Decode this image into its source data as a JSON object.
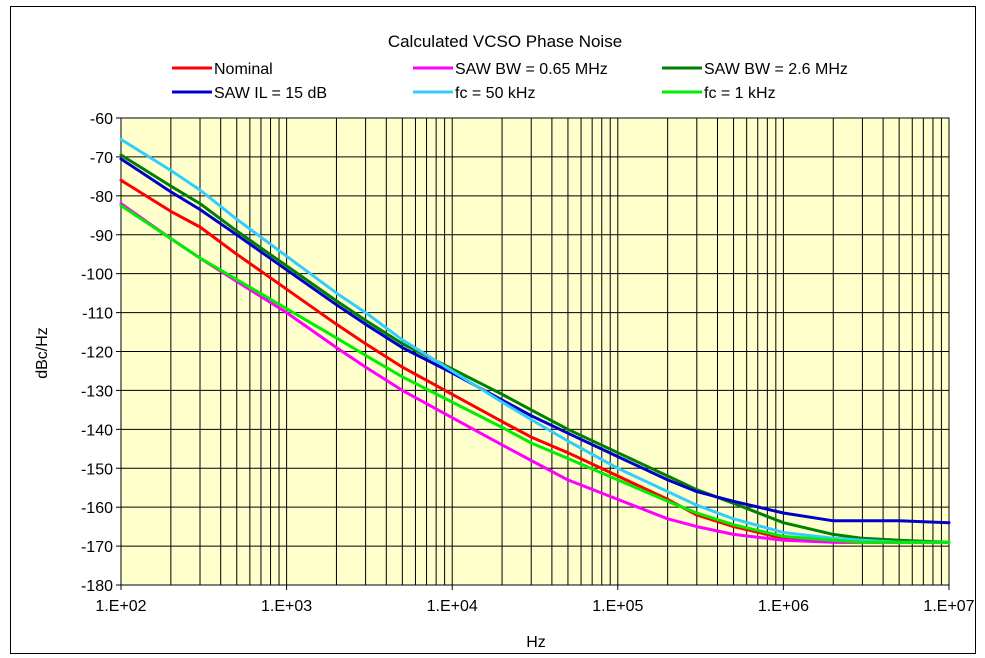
{
  "chart_data": {
    "type": "line",
    "title": "Calculated VCSO Phase Noise",
    "xlabel": "Hz",
    "ylabel": "dBc/Hz",
    "x_scale": "log",
    "xlim": [
      100,
      10000000
    ],
    "ylim": [
      -180,
      -60
    ],
    "x_ticks": [
      "1.E+02",
      "1.E+03",
      "1.E+04",
      "1.E+05",
      "1.E+06",
      "1.E+07"
    ],
    "y_ticks": [
      "-60",
      "-70",
      "-80",
      "-90",
      "-100",
      "-110",
      "-120",
      "-130",
      "-140",
      "-150",
      "-160",
      "-170",
      "-180"
    ],
    "grid": true,
    "plot_background": "#ffffcc",
    "legend_position": "top",
    "series": [
      {
        "name": "Nominal",
        "color": "#ff0000",
        "x": [
          100,
          200,
          300,
          500,
          1000,
          2000,
          3000,
          5000,
          10000,
          20000,
          30000,
          50000,
          100000,
          200000,
          300000,
          500000,
          1000000,
          2000000,
          3000000,
          5000000,
          10000000
        ],
        "y": [
          -76,
          -84,
          -88,
          -95,
          -104,
          -113,
          -118,
          -124,
          -131,
          -138,
          -142,
          -146,
          -152,
          -158,
          -162,
          -165,
          -168,
          -169,
          -169,
          -169,
          -169
        ]
      },
      {
        "name": "SAW BW = 0.65 MHz",
        "color": "#ff00ff",
        "x": [
          100,
          200,
          300,
          500,
          1000,
          2000,
          3000,
          5000,
          10000,
          20000,
          30000,
          50000,
          100000,
          200000,
          300000,
          500000,
          1000000,
          2000000,
          3000000,
          5000000,
          10000000
        ],
        "y": [
          -82,
          -91,
          -96,
          -102,
          -110,
          -119,
          -124,
          -130,
          -137,
          -144,
          -148,
          -153,
          -158,
          -163,
          -165,
          -167,
          -168.5,
          -169,
          -169,
          -169,
          -169
        ]
      },
      {
        "name": "SAW BW = 2.6 MHz",
        "color": "#008000",
        "x": [
          100,
          200,
          300,
          500,
          1000,
          2000,
          3000,
          5000,
          10000,
          20000,
          30000,
          50000,
          100000,
          200000,
          300000,
          500000,
          1000000,
          2000000,
          3000000,
          5000000,
          10000000
        ],
        "y": [
          -69.5,
          -77.5,
          -82,
          -89,
          -98,
          -107,
          -112,
          -118,
          -124.5,
          -131,
          -135,
          -140,
          -146,
          -152,
          -155.5,
          -159,
          -164,
          -167,
          -168,
          -168.5,
          -169
        ]
      },
      {
        "name": "SAW IL = 15 dB",
        "color": "#0000cc",
        "x": [
          100,
          200,
          300,
          500,
          1000,
          2000,
          3000,
          5000,
          10000,
          20000,
          30000,
          50000,
          100000,
          200000,
          300000,
          500000,
          1000000,
          2000000,
          3000000,
          5000000,
          10000000
        ],
        "y": [
          -70.5,
          -79,
          -83.5,
          -90,
          -99,
          -108,
          -113,
          -119,
          -125.5,
          -132.5,
          -136.5,
          -141,
          -147,
          -153,
          -156,
          -158.5,
          -161.5,
          -163.5,
          -163.5,
          -163.5,
          -164
        ]
      },
      {
        "name": "fc = 50 kHz",
        "color": "#33ccff",
        "x": [
          100,
          200,
          300,
          500,
          1000,
          2000,
          3000,
          5000,
          10000,
          20000,
          30000,
          50000,
          100000,
          200000,
          300000,
          500000,
          1000000,
          2000000,
          3000000,
          5000000,
          10000000
        ],
        "y": [
          -65.5,
          -73.5,
          -78.5,
          -86,
          -95.5,
          -105,
          -110,
          -117,
          -125,
          -133,
          -137.5,
          -143,
          -150,
          -156,
          -159.5,
          -163,
          -166.5,
          -168,
          -168.5,
          -169,
          -169
        ]
      },
      {
        "name": "fc = 1 kHz",
        "color": "#00ee00",
        "x": [
          100,
          200,
          300,
          500,
          1000,
          2000,
          3000,
          5000,
          10000,
          20000,
          30000,
          50000,
          100000,
          200000,
          300000,
          500000,
          1000000,
          2000000,
          3000000,
          5000000,
          10000000
        ],
        "y": [
          -82.5,
          -91,
          -96,
          -101.5,
          -109,
          -116.5,
          -121,
          -126.5,
          -133,
          -139.5,
          -143.5,
          -147.5,
          -153,
          -158.5,
          -161.5,
          -164.5,
          -167.5,
          -168.5,
          -169,
          -169,
          -169
        ]
      }
    ]
  }
}
